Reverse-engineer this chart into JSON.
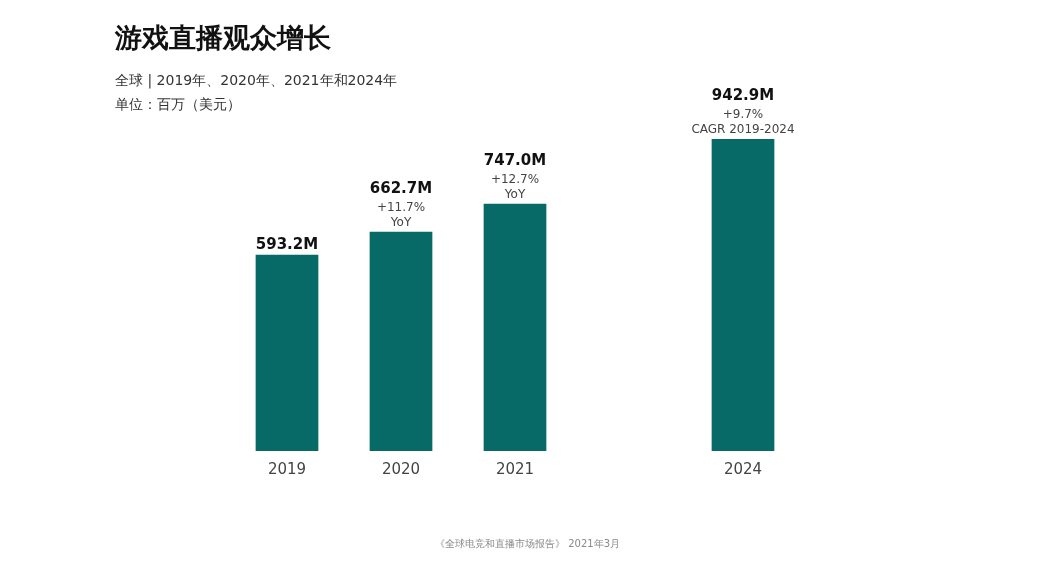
{
  "chart_data": {
    "type": "bar",
    "title": "游戏直播观众增长",
    "subtitle": "全球 | 2019年、2020年、2021年和2024年",
    "ylabel": "单位：百万（美元）",
    "categories": [
      "2019",
      "2020",
      "2021",
      null,
      "2024"
    ],
    "values": [
      593.2,
      662.7,
      747.0,
      null,
      942.9
    ],
    "value_labels": [
      "593.2M",
      "662.7M",
      "747.0M",
      null,
      "942.9M"
    ],
    "color": "#086a67",
    "tick_labels": "x",
    "grid": false,
    "legend": false,
    "annotations": [
      {
        "text": "+11.7%\nYoY",
        "x": "2020",
        "y": 662.7
      },
      {
        "text": "+12.7%\nYoY",
        "x": "2021",
        "y": 747.0
      },
      {
        "text": "+9.7%\nCAGR 2019-2024",
        "x": "2024",
        "y": 942.9
      },
      "《全球电竞和直播市场报告》 2021年3月"
    ]
  }
}
